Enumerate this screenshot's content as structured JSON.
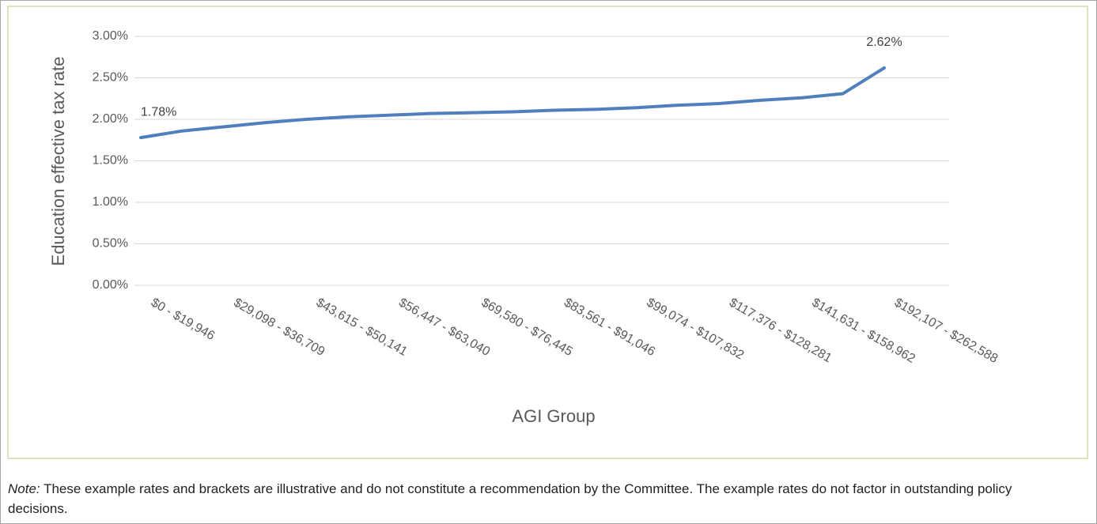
{
  "chart_data": {
    "type": "line",
    "y_label": "Education effective tax rate",
    "x_label": "AGI Group",
    "categories": [
      "$0 - $19,946",
      null,
      "$29,098 - $36,709",
      null,
      "$43,615 - $50,141",
      null,
      "$56,447 - $63,040",
      null,
      "$69,580 - $76,445",
      null,
      "$83,561 - $91,046",
      null,
      "$99,074 - $107,832",
      null,
      "$117,376 - $128,281",
      null,
      "$141,631 - $158,962",
      null,
      "$192,107 - $262,588"
    ],
    "series": [
      {
        "color": "#4f7fbc",
        "values": [
          1.78,
          1.86,
          1.91,
          1.96,
          2.0,
          2.03,
          2.05,
          2.07,
          2.08,
          2.09,
          2.11,
          2.12,
          2.14,
          2.17,
          2.19,
          2.23,
          2.26,
          2.31,
          2.62
        ],
        "value_labels": [
          "1.78%",
          null,
          null,
          null,
          null,
          null,
          null,
          null,
          null,
          null,
          null,
          null,
          null,
          null,
          null,
          null,
          null,
          null,
          "2.62%"
        ]
      }
    ],
    "ylim": [
      0,
      3
    ],
    "yticks": [
      {
        "value": 0,
        "label": "0.00%"
      },
      {
        "value": 0.5,
        "label": "0.50%"
      },
      {
        "value": 1,
        "label": "1.00%"
      },
      {
        "value": 1.5,
        "label": "1.50%"
      },
      {
        "value": 2,
        "label": "2.00%"
      },
      {
        "value": 2.5,
        "label": "2.50%"
      },
      {
        "value": 3,
        "label": "3.00%"
      }
    ],
    "grid": true
  },
  "note": {
    "label": "Note:",
    "text": "These example rates and brackets are illustrative and do not constitute a recommendation by the Committee.  The example rates do not factor in outstanding policy decisions."
  }
}
